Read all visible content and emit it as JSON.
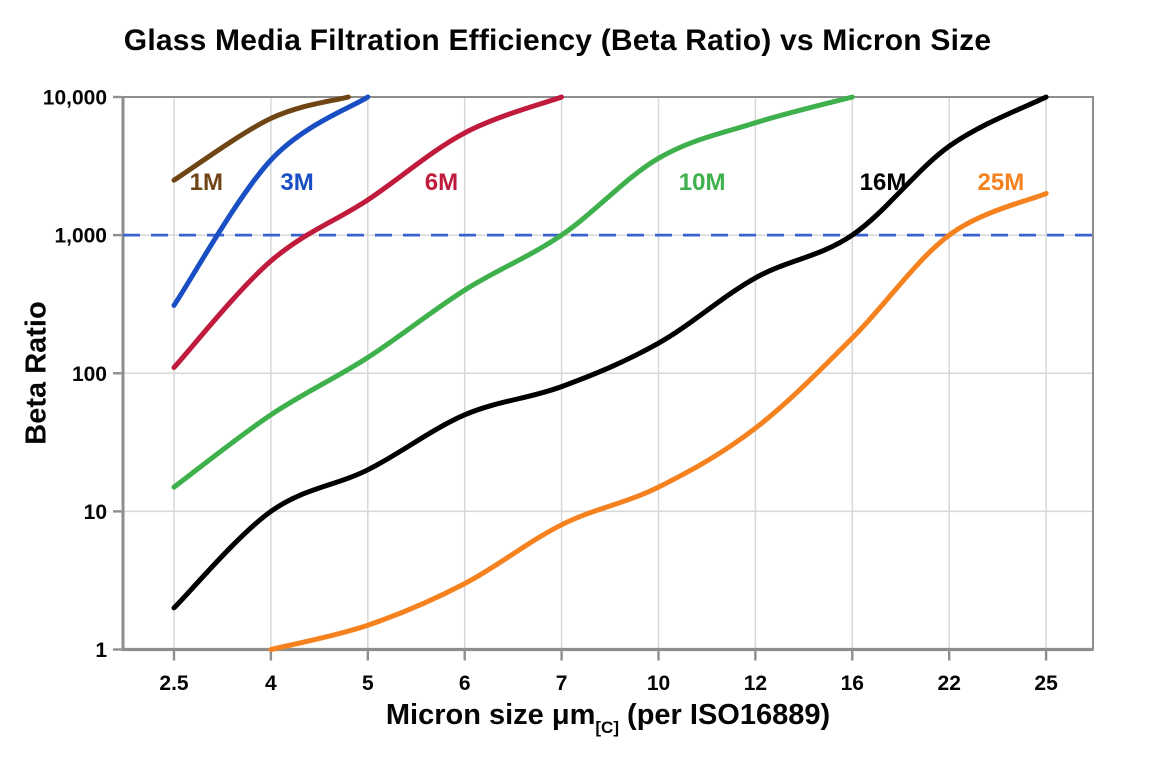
{
  "title": "Glass Media Filtration Efficiency (Beta Ratio) vs Micron Size",
  "chart_data": {
    "type": "line",
    "title": "Glass Media Filtration Efficiency (Beta Ratio) vs Micron Size",
    "xlabel": {
      "main": "Micron size μm",
      "sub": "[C]",
      "rest": " (per ISO16889)"
    },
    "ylabel": "Beta Ratio",
    "x_ticks": [
      2.5,
      4,
      5,
      6,
      7,
      10,
      12,
      16,
      22,
      25
    ],
    "x_tick_labels": [
      "2.5",
      "4",
      "5",
      "6",
      "7",
      "10",
      "12",
      "16",
      "22",
      "25"
    ],
    "y_scale": "log",
    "ylim": [
      1,
      10000
    ],
    "y_ticks": [
      1,
      10,
      100,
      1000,
      10000
    ],
    "y_tick_labels": [
      "1",
      "10",
      "100",
      "1,000",
      "10,000"
    ],
    "grid": true,
    "legend_position": "inline-labels",
    "reference_line": {
      "y": 1000,
      "style": "dashed",
      "color": "#3b63cf"
    },
    "colors": {
      "axis": "#8e8e8e",
      "grid": "#d7d7d7",
      "text": "#050505"
    },
    "series": [
      {
        "name": "1M",
        "color": "#6f4516",
        "label_at": {
          "x": 3.0,
          "y": 2450
        },
        "points": [
          [
            2.5,
            2500
          ],
          [
            4,
            7000
          ],
          [
            4.8,
            10000
          ]
        ]
      },
      {
        "name": "3M",
        "color": "#1a4fc4",
        "label_at": {
          "x": 4.27,
          "y": 2450
        },
        "points": [
          [
            2.5,
            310
          ],
          [
            4,
            3500
          ],
          [
            5,
            10000
          ]
        ]
      },
      {
        "name": "6M",
        "color": "#c01a3c",
        "label_at": {
          "x": 5.76,
          "y": 2450
        },
        "points": [
          [
            2.5,
            110
          ],
          [
            4,
            650
          ],
          [
            5,
            1800
          ],
          [
            6,
            5500
          ],
          [
            7,
            10000
          ]
        ]
      },
      {
        "name": "10M",
        "color": "#3eb04c",
        "label_at": {
          "x": 10.9,
          "y": 2450
        },
        "points": [
          [
            2.5,
            15
          ],
          [
            4,
            50
          ],
          [
            5,
            130
          ],
          [
            6,
            400
          ],
          [
            7,
            1000
          ],
          [
            10,
            3600
          ],
          [
            12,
            6500
          ],
          [
            16,
            10000
          ]
        ]
      },
      {
        "name": "16M",
        "color": "#000000",
        "label_at": {
          "x": 17.9,
          "y": 2450
        },
        "points": [
          [
            2.5,
            2
          ],
          [
            4,
            10
          ],
          [
            5,
            20
          ],
          [
            6,
            50
          ],
          [
            7,
            80
          ],
          [
            10,
            165
          ],
          [
            12,
            490
          ],
          [
            16,
            1000
          ],
          [
            22,
            4400
          ],
          [
            25,
            10000
          ]
        ]
      },
      {
        "name": "25M",
        "color": "#f5821f",
        "label_at": {
          "x": 23.6,
          "y": 2450
        },
        "points": [
          [
            4,
            1
          ],
          [
            5,
            1.5
          ],
          [
            6,
            3
          ],
          [
            7,
            8
          ],
          [
            10,
            15
          ],
          [
            12,
            40
          ],
          [
            16,
            180
          ],
          [
            22,
            1000
          ],
          [
            25,
            2000
          ]
        ]
      }
    ]
  }
}
